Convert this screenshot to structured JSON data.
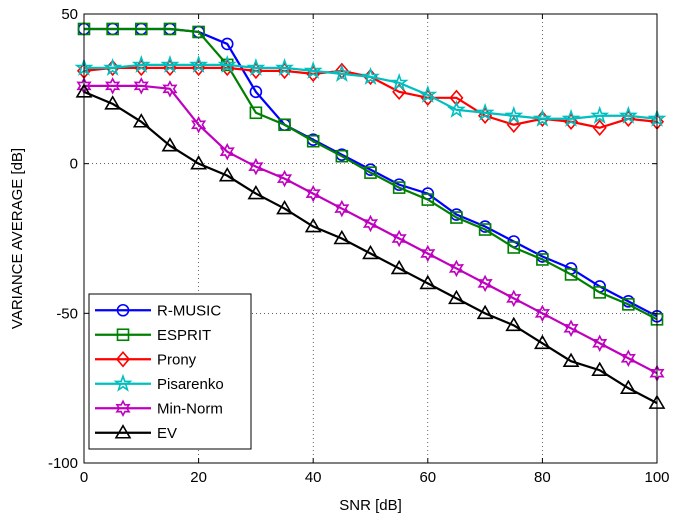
{
  "chart_data": {
    "type": "line",
    "xlabel": "SNR [dB]",
    "ylabel": "VARIANCE AVERAGE [dB]",
    "xlim": [
      0,
      100
    ],
    "ylim": [
      -100,
      50
    ],
    "xticks": [
      0,
      20,
      40,
      60,
      80,
      100
    ],
    "yticks": [
      -100,
      -50,
      0,
      50
    ],
    "grid": "dotted",
    "legend_position": "bottom-left",
    "x": [
      0,
      5,
      10,
      15,
      20,
      25,
      30,
      35,
      40,
      45,
      50,
      55,
      60,
      65,
      70,
      75,
      80,
      85,
      90,
      95,
      100
    ],
    "series": [
      {
        "name": "R-MUSIC",
        "color": "#0000ff",
        "marker": "circle",
        "values": [
          45,
          45,
          45,
          45,
          44,
          40,
          24,
          13,
          8,
          3,
          -2,
          -7,
          -10,
          -17,
          -21,
          -26,
          -31,
          -35,
          -41,
          -46,
          -51
        ]
      },
      {
        "name": "ESPRIT",
        "color": "#008000",
        "marker": "square",
        "values": [
          45,
          45,
          45,
          45,
          44,
          33,
          17,
          13,
          7.5,
          2.5,
          -3,
          -8,
          -12,
          -18,
          -22,
          -28,
          -32,
          -37,
          -43,
          -47,
          -52
        ]
      },
      {
        "name": "Prony",
        "color": "#ff0000",
        "marker": "diamond",
        "values": [
          31,
          32,
          32,
          32,
          32,
          32,
          31,
          31,
          30,
          31,
          29,
          24,
          22,
          22,
          16,
          13,
          15,
          14,
          12,
          15,
          14
        ]
      },
      {
        "name": "Pisarenko",
        "color": "#00bfbf",
        "marker": "star",
        "values": [
          32,
          32,
          33,
          33,
          33,
          33,
          32,
          32,
          31,
          30,
          29,
          27,
          23,
          18,
          17,
          16,
          15,
          15,
          16,
          16,
          15
        ]
      },
      {
        "name": "Min-Norm",
        "color": "#bf00bf",
        "marker": "hexagram",
        "values": [
          26,
          26,
          26,
          25,
          13,
          4,
          -1,
          -5,
          -10,
          -15,
          -20,
          -25,
          -30,
          -35,
          -40,
          -45,
          -50,
          -55,
          -60,
          -65,
          -70
        ]
      },
      {
        "name": "EV",
        "color": "#000000",
        "marker": "triangle",
        "values": [
          24,
          20,
          14,
          6,
          0,
          -4,
          -10,
          -15,
          -21,
          -25,
          -30,
          -35,
          -40,
          -45,
          -50,
          -54,
          -60,
          -66,
          -69,
          -75,
          -80
        ]
      }
    ]
  }
}
